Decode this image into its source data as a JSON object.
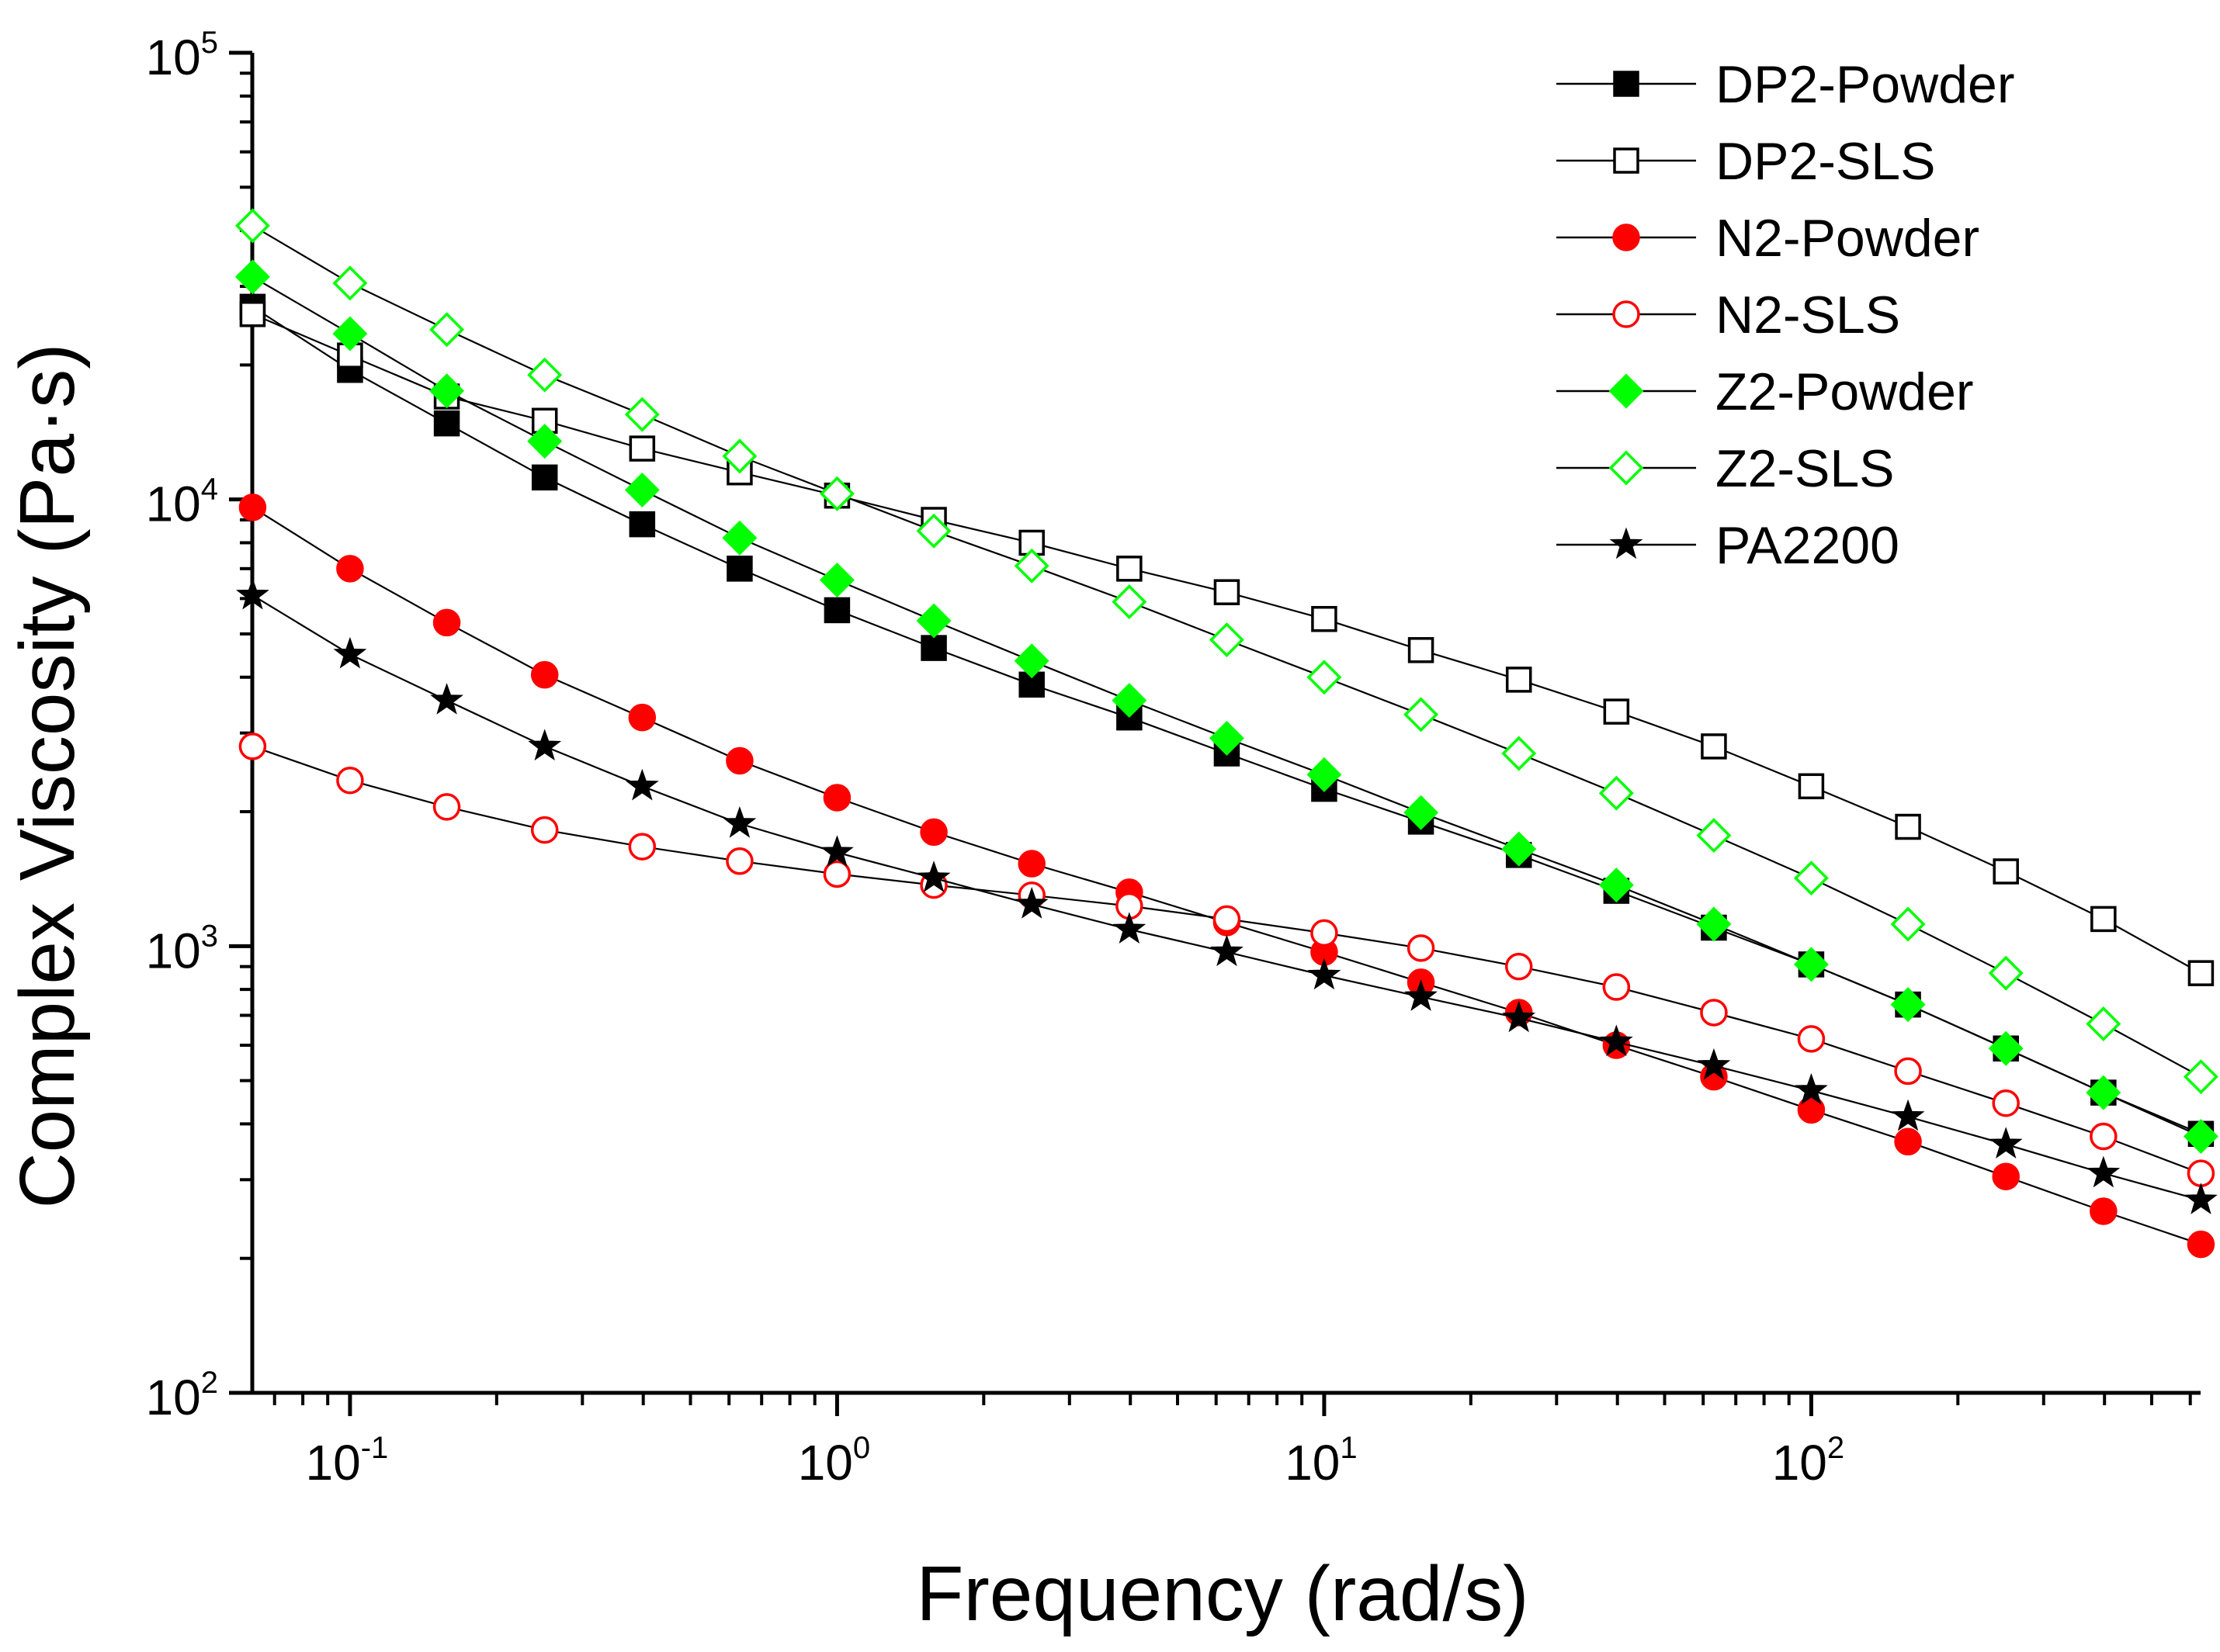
{
  "chart_data": {
    "type": "line",
    "xlabel": "Frequency (rad/s)",
    "ylabel": "Complex Viscosity (Pa·s)",
    "xscale": "log",
    "yscale": "log",
    "xlim": [
      0.063,
      630
    ],
    "ylim": [
      100,
      100000
    ],
    "legend_position": "top-right",
    "grid": false,
    "x_ticks": [
      {
        "value": 0.1,
        "base": "10",
        "exp": "-1"
      },
      {
        "value": 1,
        "base": "10",
        "exp": "0"
      },
      {
        "value": 10,
        "base": "10",
        "exp": "1"
      },
      {
        "value": 100,
        "base": "10",
        "exp": "2"
      }
    ],
    "y_ticks": [
      {
        "value": 100,
        "base": "10",
        "exp": "2"
      },
      {
        "value": 1000,
        "base": "10",
        "exp": "3"
      },
      {
        "value": 10000,
        "base": "10",
        "exp": "4"
      },
      {
        "value": 100000,
        "base": "10",
        "exp": "5"
      }
    ],
    "x": [
      0.0631,
      0.1,
      0.158,
      0.251,
      0.398,
      0.631,
      1,
      1.58,
      2.51,
      3.98,
      6.31,
      10,
      15.8,
      25.1,
      39.8,
      63.1,
      100,
      158,
      251,
      398,
      631
    ],
    "series": [
      {
        "name": "DP2-Powder",
        "color": "#000000",
        "marker": "square",
        "filled": true,
        "values": [
          27000,
          19500,
          14800,
          11200,
          8800,
          7000,
          5650,
          4650,
          3850,
          3250,
          2700,
          2250,
          1900,
          1600,
          1330,
          1100,
          910,
          740,
          590,
          470,
          380
        ]
      },
      {
        "name": "DP2-SLS",
        "color": "#000000",
        "marker": "square",
        "filled": false,
        "values": [
          26000,
          21000,
          17000,
          15000,
          13000,
          11500,
          10200,
          9000,
          8000,
          7000,
          6200,
          5400,
          4600,
          3950,
          3350,
          2800,
          2280,
          1850,
          1470,
          1150,
          870
        ]
      },
      {
        "name": "N2-Powder",
        "color": "#ff0000",
        "marker": "circle",
        "filled": true,
        "values": [
          9600,
          7000,
          5300,
          4050,
          3250,
          2600,
          2150,
          1800,
          1530,
          1320,
          1130,
          970,
          830,
          710,
          600,
          510,
          430,
          365,
          305,
          255,
          215
        ]
      },
      {
        "name": "N2-SLS",
        "color": "#ff0000",
        "marker": "circle",
        "filled": false,
        "values": [
          2800,
          2350,
          2050,
          1820,
          1670,
          1550,
          1450,
          1370,
          1300,
          1230,
          1150,
          1070,
          990,
          900,
          810,
          710,
          620,
          525,
          445,
          375,
          310
        ]
      },
      {
        "name": "Z2-Powder",
        "color": "#00ff00",
        "marker": "diamond",
        "filled": true,
        "values": [
          31500,
          23500,
          17500,
          13500,
          10500,
          8200,
          6600,
          5350,
          4350,
          3550,
          2920,
          2420,
          1990,
          1650,
          1370,
          1120,
          910,
          740,
          590,
          470,
          375
        ]
      },
      {
        "name": "Z2-SLS",
        "color": "#00ff00",
        "marker": "diamond",
        "filled": false,
        "values": [
          41000,
          30500,
          24000,
          19000,
          15500,
          12500,
          10300,
          8500,
          7100,
          5900,
          4850,
          4000,
          3300,
          2700,
          2200,
          1770,
          1420,
          1120,
          870,
          670,
          510
        ]
      },
      {
        "name": "PA2200",
        "color": "#000000",
        "marker": "star",
        "filled": true,
        "values": [
          6100,
          4500,
          3550,
          2800,
          2280,
          1880,
          1620,
          1420,
          1240,
          1090,
          970,
          860,
          770,
          690,
          610,
          540,
          475,
          415,
          360,
          310,
          270
        ]
      }
    ]
  }
}
